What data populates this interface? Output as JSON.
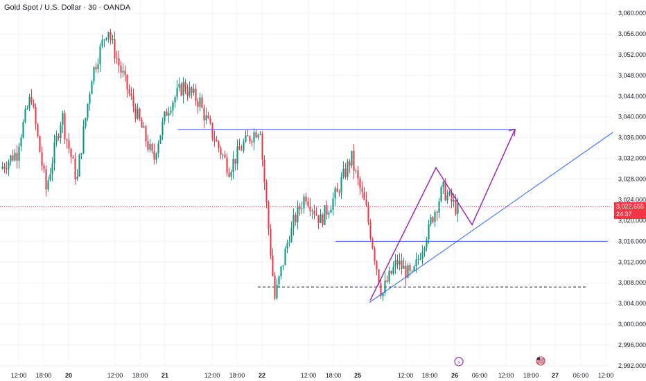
{
  "title": "Gold Spot / U.S. Dollar · 30 · OANDA",
  "colors": {
    "up": "#089981",
    "down": "#f23645",
    "trendline": "#2962ff",
    "projection": "#9c27b0",
    "grid": "#f0f3fa",
    "current_price_line": "#f23645"
  },
  "current_price": {
    "value": "3,022.655",
    "countdown": "24:37"
  },
  "chart_data": {
    "type": "candlestick",
    "title": "Gold Spot / U.S. Dollar · 30 · OANDA",
    "ylim": [
      2990,
      3062
    ],
    "y_ticks": [
      "3,060.000",
      "3,056.000",
      "3,052.000",
      "3,048.000",
      "3,044.000",
      "3,040.000",
      "3,036.000",
      "3,032.000",
      "3,028.000",
      "3,024.000",
      "3,020.000",
      "3,016.000",
      "3,012.000",
      "3,008.000",
      "3,004.000",
      "3,000.000",
      "2,996.000",
      "2,992.000"
    ],
    "y_tick_values": [
      3060,
      3056,
      3052,
      3048,
      3044,
      3040,
      3036,
      3032,
      3028,
      3024,
      3020,
      3016,
      3012,
      3008,
      3004,
      3000,
      2996,
      2992
    ],
    "x_ticks": [
      "12:00",
      "18:00",
      "20",
      "12:00",
      "18:00",
      "21",
      "12:00",
      "18:00",
      "22",
      "12:00",
      "18:00",
      "25",
      "12:00",
      "18:00",
      "26",
      "06:00",
      "12:00",
      "18:00",
      "27",
      "06:00",
      "12:00"
    ],
    "x_tick_bold": [
      false,
      false,
      true,
      false,
      false,
      true,
      false,
      false,
      true,
      false,
      false,
      true,
      false,
      false,
      true,
      false,
      false,
      false,
      true,
      false,
      false
    ],
    "anchors": [
      {
        "o": 3030,
        "c": 3033
      },
      {
        "o": 3033,
        "c": 3044
      },
      {
        "o": 3044,
        "c": 3026
      },
      {
        "o": 3026,
        "c": 3040
      },
      {
        "o": 3040,
        "c": 3028
      },
      {
        "o": 3028,
        "c": 3048
      },
      {
        "o": 3048,
        "c": 3057
      },
      {
        "o": 3057,
        "c": 3048
      },
      {
        "o": 3048,
        "c": 3040
      },
      {
        "o": 3040,
        "c": 3032
      },
      {
        "o": 3032,
        "c": 3042
      },
      {
        "o": 3042,
        "c": 3046
      },
      {
        "o": 3046,
        "c": 3043
      },
      {
        "o": 3043,
        "c": 3036
      },
      {
        "o": 3036,
        "c": 3030
      },
      {
        "o": 3030,
        "c": 3035
      },
      {
        "o": 3035,
        "c": 3038
      },
      {
        "o": 3038,
        "c": 3005
      },
      {
        "o": 3005,
        "c": 3018
      },
      {
        "o": 3018,
        "c": 3025
      },
      {
        "o": 3025,
        "c": 3020
      },
      {
        "o": 3020,
        "c": 3025
      },
      {
        "o": 3025,
        "c": 3032
      },
      {
        "o": 3032,
        "c": 3022
      },
      {
        "o": 3022,
        "c": 3006
      },
      {
        "o": 3006,
        "c": 3012
      },
      {
        "o": 3012,
        "c": 3009
      },
      {
        "o": 3009,
        "c": 3018
      },
      {
        "o": 3018,
        "c": 3026
      },
      {
        "o": 3026,
        "c": 3022
      }
    ],
    "horizontal_levels": [
      {
        "price": 3037.6,
        "style": "solid",
        "color": "#2962ff"
      },
      {
        "price": 3016.0,
        "style": "solid",
        "color": "#2962ff"
      },
      {
        "price": 3007.2,
        "style": "dashed",
        "color": "#131722"
      }
    ],
    "trendline": {
      "from_price": 3004.2,
      "to_price": 3037.0
    },
    "projection_path": [
      3004.6,
      3030.2,
      3019.2,
      3037.6
    ],
    "current_price": 3022.655
  },
  "footer_icons": [
    "lightning-event-icon",
    "us-flag-event-icon"
  ]
}
